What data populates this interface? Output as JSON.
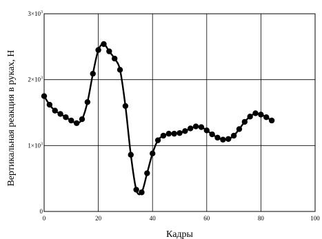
{
  "chart_data": {
    "type": "line",
    "title": "",
    "xlabel": "Кадры",
    "ylabel": "Вертикальная реакция в руках, Н",
    "xlim": [
      0,
      100
    ],
    "ylim": [
      0,
      3000
    ],
    "grid": true,
    "x_ticks": [
      {
        "value": 0,
        "label": "0"
      },
      {
        "value": 20,
        "label": "20"
      },
      {
        "value": 40,
        "label": "40"
      },
      {
        "value": 60,
        "label": "60"
      },
      {
        "value": 80,
        "label": "80"
      },
      {
        "value": 100,
        "label": "100"
      }
    ],
    "y_ticks": [
      {
        "value": 0,
        "mantissa": "0",
        "exponent": ""
      },
      {
        "value": 1000,
        "mantissa": "1×10",
        "exponent": "3"
      },
      {
        "value": 2000,
        "mantissa": "2×10",
        "exponent": "3"
      },
      {
        "value": 3000,
        "mantissa": "3×10",
        "exponent": "3"
      }
    ],
    "series": [
      {
        "color": "#000000",
        "x": [
          0,
          2,
          4,
          6,
          8,
          10,
          12,
          14,
          16,
          18,
          20,
          22,
          24,
          26,
          28,
          30,
          32,
          34,
          36,
          38,
          40,
          42,
          44,
          46,
          48,
          50,
          52,
          54,
          56,
          58,
          60,
          62,
          64,
          66,
          68,
          70,
          72,
          74,
          76,
          78,
          80,
          82,
          84
        ],
        "y": [
          1750,
          1620,
          1530,
          1480,
          1430,
          1380,
          1340,
          1400,
          1660,
          2090,
          2450,
          2540,
          2430,
          2320,
          2150,
          1600,
          860,
          330,
          290,
          580,
          880,
          1080,
          1150,
          1180,
          1180,
          1190,
          1220,
          1260,
          1290,
          1280,
          1230,
          1170,
          1120,
          1090,
          1100,
          1150,
          1250,
          1360,
          1440,
          1490,
          1470,
          1430,
          1380
        ]
      }
    ]
  }
}
